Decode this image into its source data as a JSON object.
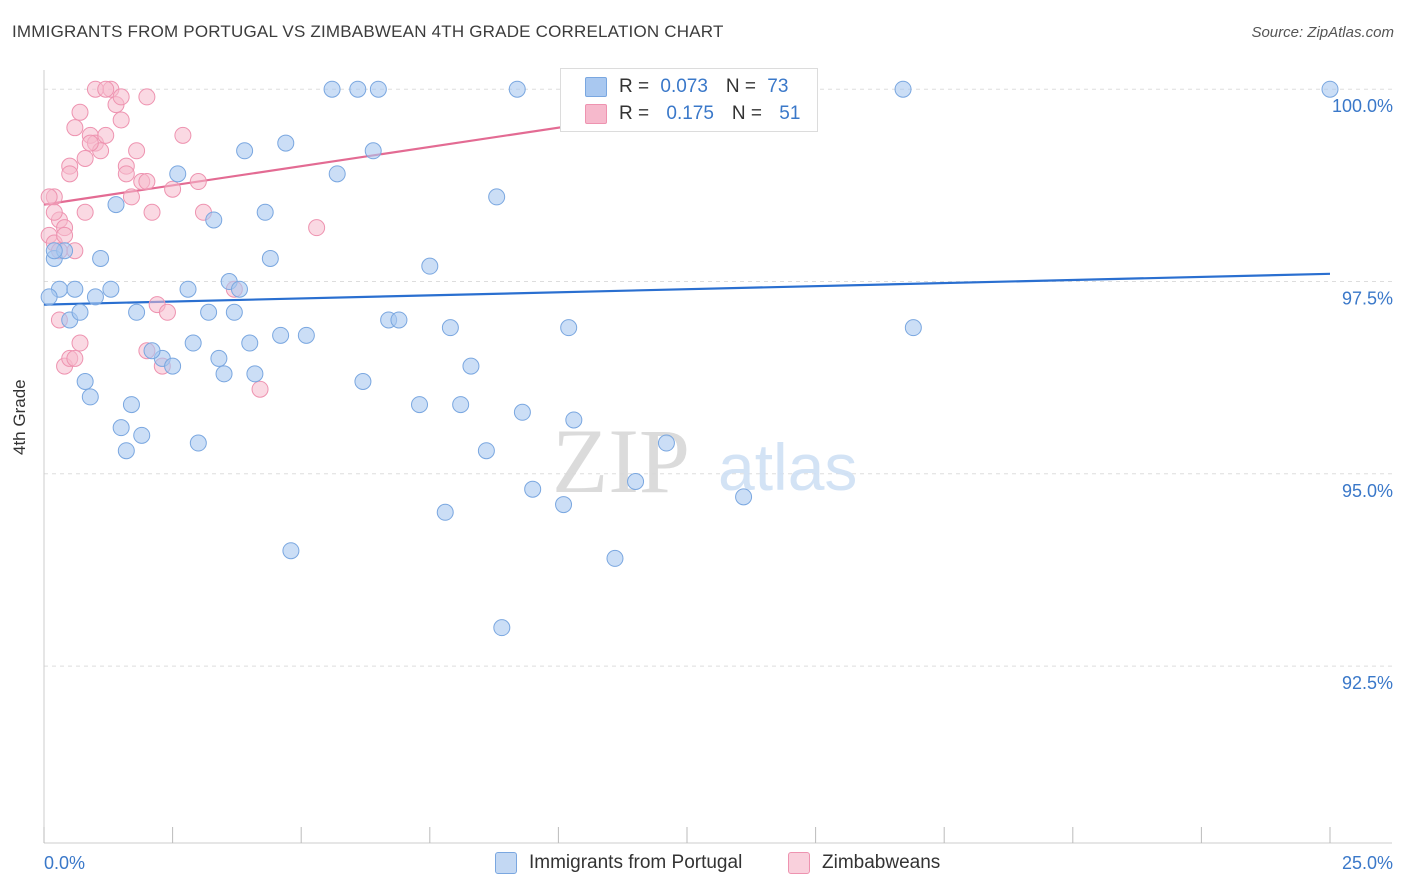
{
  "title": "IMMIGRANTS FROM PORTUGAL VS ZIMBABWEAN 4TH GRADE CORRELATION CHART",
  "source": "Source: ZipAtlas.com",
  "watermark": {
    "zip": "ZIP",
    "atlas": "atlas"
  },
  "colors": {
    "blue_fill": "#a9c8f0",
    "blue_stroke": "#7aa7e0",
    "blue_line": "#2a6fd0",
    "pink_fill": "#f6b9cc",
    "pink_stroke": "#ee93b0",
    "pink_line": "#e36b93",
    "tick_label": "#3a78c9",
    "grid": "#dddddd"
  },
  "legend_top": {
    "rows": [
      {
        "r_label": "R = ",
        "r_value": "0.073",
        "n_label": "N = ",
        "n_value": "73",
        "color": "#a9c8f0"
      },
      {
        "r_label": "R = ",
        "r_value": "0.175",
        "n_label": "N = ",
        "n_value": "51",
        "color": "#f6b9cc"
      }
    ]
  },
  "legend_bottom": [
    {
      "label": "Immigrants from Portugal",
      "color": "#a9c8f0"
    },
    {
      "label": "Zimbabweans",
      "color": "#f6b9cc"
    }
  ],
  "chart_data": {
    "type": "scatter",
    "title": "IMMIGRANTS FROM PORTUGAL VS ZIMBABWEAN 4TH GRADE CORRELATION CHART",
    "xlabel": "",
    "ylabel": "4th Grade",
    "xlim": [
      0,
      25
    ],
    "ylim": [
      90.2,
      100.25
    ],
    "x_tick_labels": [
      "0.0%",
      "25.0%"
    ],
    "y_ticks": [
      92.5,
      95.0,
      97.5,
      100.0
    ],
    "y_tick_labels": [
      "92.5%",
      "95.0%",
      "97.5%",
      "100.0%"
    ],
    "grid": true,
    "legend": "top-center",
    "series": [
      {
        "name": "Immigrants from Portugal",
        "color": "#a9c8f0",
        "trend": {
          "x": [
            0,
            25
          ],
          "y": [
            97.2,
            97.6
          ]
        },
        "points": [
          [
            0.2,
            97.8
          ],
          [
            0.4,
            97.9
          ],
          [
            0.3,
            97.4
          ],
          [
            0.5,
            97.0
          ],
          [
            0.6,
            97.4
          ],
          [
            0.8,
            96.2
          ],
          [
            0.9,
            96.0
          ],
          [
            1.1,
            97.8
          ],
          [
            1.3,
            97.4
          ],
          [
            1.4,
            98.5
          ],
          [
            1.5,
            95.6
          ],
          [
            1.6,
            95.3
          ],
          [
            1.7,
            95.9
          ],
          [
            1.8,
            97.1
          ],
          [
            1.9,
            95.5
          ],
          [
            2.3,
            96.5
          ],
          [
            2.5,
            96.4
          ],
          [
            2.6,
            98.9
          ],
          [
            2.8,
            97.4
          ],
          [
            2.9,
            96.7
          ],
          [
            3.0,
            95.4
          ],
          [
            3.2,
            97.1
          ],
          [
            3.3,
            98.3
          ],
          [
            3.5,
            96.3
          ],
          [
            3.6,
            97.5
          ],
          [
            3.7,
            97.1
          ],
          [
            3.8,
            97.4
          ],
          [
            3.9,
            99.2
          ],
          [
            4.1,
            96.3
          ],
          [
            4.3,
            98.4
          ],
          [
            4.4,
            97.8
          ],
          [
            4.6,
            96.8
          ],
          [
            4.7,
            99.3
          ],
          [
            4.8,
            94.0
          ],
          [
            5.1,
            96.8
          ],
          [
            5.6,
            100.0
          ],
          [
            5.7,
            98.9
          ],
          [
            6.1,
            100.0
          ],
          [
            6.2,
            96.2
          ],
          [
            6.4,
            99.2
          ],
          [
            6.5,
            100.0
          ],
          [
            6.7,
            97.0
          ],
          [
            6.9,
            97.0
          ],
          [
            7.3,
            95.9
          ],
          [
            7.5,
            97.7
          ],
          [
            7.8,
            94.5
          ],
          [
            7.9,
            96.9
          ],
          [
            8.1,
            95.9
          ],
          [
            8.3,
            96.4
          ],
          [
            8.6,
            95.3
          ],
          [
            8.8,
            98.6
          ],
          [
            8.9,
            93.0
          ],
          [
            9.2,
            100.0
          ],
          [
            9.3,
            95.8
          ],
          [
            9.5,
            94.8
          ],
          [
            10.1,
            94.6
          ],
          [
            10.2,
            96.9
          ],
          [
            10.3,
            95.7
          ],
          [
            11.1,
            93.9
          ],
          [
            11.5,
            94.9
          ],
          [
            12.1,
            95.4
          ],
          [
            13.6,
            94.7
          ],
          [
            14.1,
            100.0
          ],
          [
            16.7,
            100.0
          ],
          [
            16.9,
            96.9
          ],
          [
            25.0,
            100.0
          ],
          [
            0.1,
            97.3
          ],
          [
            0.2,
            97.9
          ],
          [
            0.7,
            97.1
          ],
          [
            1.0,
            97.3
          ],
          [
            2.1,
            96.6
          ],
          [
            4.0,
            96.7
          ],
          [
            3.4,
            96.5
          ]
        ]
      },
      {
        "name": "Zimbabweans",
        "color": "#f6b9cc",
        "trend": {
          "x": [
            0,
            15
          ],
          "y": [
            98.5,
            100.0
          ]
        },
        "points": [
          [
            0.1,
            98.1
          ],
          [
            0.2,
            98.6
          ],
          [
            0.3,
            98.3
          ],
          [
            0.4,
            98.2
          ],
          [
            0.5,
            99.0
          ],
          [
            0.6,
            99.5
          ],
          [
            0.7,
            99.7
          ],
          [
            0.8,
            99.1
          ],
          [
            0.9,
            99.4
          ],
          [
            1.0,
            99.3
          ],
          [
            1.1,
            99.2
          ],
          [
            1.2,
            99.4
          ],
          [
            1.3,
            100.0
          ],
          [
            1.4,
            99.8
          ],
          [
            1.5,
            99.9
          ],
          [
            1.6,
            99.0
          ],
          [
            1.7,
            98.6
          ],
          [
            1.8,
            99.2
          ],
          [
            1.9,
            98.8
          ],
          [
            2.0,
            98.8
          ],
          [
            2.1,
            98.4
          ],
          [
            2.2,
            97.2
          ],
          [
            2.3,
            96.4
          ],
          [
            2.4,
            97.1
          ],
          [
            2.5,
            98.7
          ],
          [
            0.3,
            97.0
          ],
          [
            0.4,
            96.4
          ],
          [
            0.5,
            96.5
          ],
          [
            0.6,
            96.5
          ],
          [
            0.7,
            96.7
          ],
          [
            0.2,
            98.0
          ],
          [
            0.3,
            97.9
          ],
          [
            0.4,
            98.1
          ],
          [
            0.6,
            97.9
          ],
          [
            0.8,
            98.4
          ],
          [
            1.0,
            100.0
          ],
          [
            1.2,
            100.0
          ],
          [
            1.5,
            99.6
          ],
          [
            1.6,
            98.9
          ],
          [
            2.0,
            99.9
          ],
          [
            2.7,
            99.4
          ],
          [
            3.0,
            98.8
          ],
          [
            3.1,
            98.4
          ],
          [
            3.7,
            97.4
          ],
          [
            4.2,
            96.1
          ],
          [
            5.3,
            98.2
          ],
          [
            0.1,
            98.6
          ],
          [
            0.2,
            98.4
          ],
          [
            0.5,
            98.9
          ],
          [
            0.9,
            99.3
          ],
          [
            2.0,
            96.6
          ]
        ]
      }
    ]
  }
}
